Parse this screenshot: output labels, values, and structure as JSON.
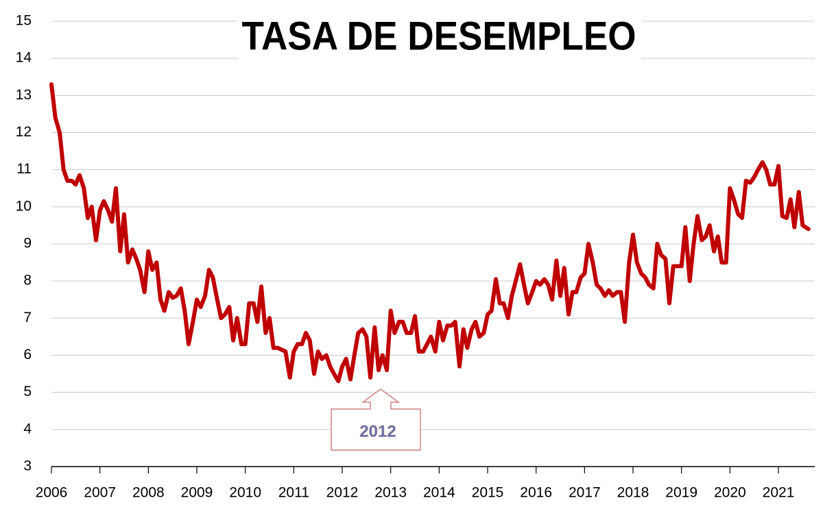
{
  "chart_data": {
    "type": "line",
    "title": "TASA DE DESEMPLEO",
    "annotation": "2012",
    "x": [
      2006.0,
      2006.08,
      2006.17,
      2006.25,
      2006.33,
      2006.42,
      2006.5,
      2006.58,
      2006.67,
      2006.75,
      2006.83,
      2006.92,
      2007.0,
      2007.08,
      2007.17,
      2007.25,
      2007.33,
      2007.42,
      2007.5,
      2007.58,
      2007.67,
      2007.75,
      2007.83,
      2007.92,
      2008.0,
      2008.08,
      2008.17,
      2008.25,
      2008.33,
      2008.42,
      2008.5,
      2008.58,
      2008.67,
      2008.75,
      2008.83,
      2008.92,
      2009.0,
      2009.08,
      2009.17,
      2009.25,
      2009.33,
      2009.42,
      2009.5,
      2009.58,
      2009.67,
      2009.75,
      2009.83,
      2009.92,
      2010.0,
      2010.08,
      2010.17,
      2010.25,
      2010.33,
      2010.42,
      2010.5,
      2010.58,
      2010.67,
      2010.75,
      2010.83,
      2010.92,
      2011.0,
      2011.08,
      2011.17,
      2011.25,
      2011.33,
      2011.42,
      2011.5,
      2011.58,
      2011.67,
      2011.75,
      2011.83,
      2011.92,
      2012.0,
      2012.08,
      2012.17,
      2012.25,
      2012.33,
      2012.42,
      2012.5,
      2012.58,
      2012.67,
      2012.75,
      2012.83,
      2012.92,
      2013.0,
      2013.08,
      2013.17,
      2013.25,
      2013.33,
      2013.42,
      2013.5,
      2013.58,
      2013.67,
      2013.75,
      2013.83,
      2013.92,
      2014.0,
      2014.08,
      2014.17,
      2014.25,
      2014.33,
      2014.42,
      2014.5,
      2014.58,
      2014.67,
      2014.75,
      2014.83,
      2014.92,
      2015.0,
      2015.08,
      2015.17,
      2015.25,
      2015.33,
      2015.42,
      2015.5,
      2015.58,
      2015.67,
      2015.75,
      2015.83,
      2015.92,
      2016.0,
      2016.08,
      2016.17,
      2016.25,
      2016.33,
      2016.42,
      2016.5,
      2016.58,
      2016.67,
      2016.75,
      2016.83,
      2016.92,
      2017.0,
      2017.08,
      2017.17,
      2017.25,
      2017.33,
      2017.42,
      2017.5,
      2017.58,
      2017.67,
      2017.75,
      2017.83,
      2017.92,
      2018.0,
      2018.08,
      2018.17,
      2018.25,
      2018.33,
      2018.42,
      2018.5,
      2018.58,
      2018.67,
      2018.75,
      2018.83,
      2018.92,
      2019.0,
      2019.08,
      2019.17,
      2019.25,
      2019.33,
      2019.42,
      2019.5,
      2019.58,
      2019.67,
      2019.75,
      2019.83,
      2019.92,
      2020.0,
      2020.08,
      2020.17,
      2020.25,
      2020.33,
      2020.42,
      2020.5,
      2020.58,
      2020.67,
      2020.75,
      2020.83,
      2020.92,
      2021.0,
      2021.08,
      2021.17,
      2021.25,
      2021.33,
      2021.42,
      2021.5,
      2021.62
    ],
    "series": [
      {
        "color": "#c00000",
        "values": [
          13.3,
          12.4,
          12.0,
          11.0,
          10.7,
          10.7,
          10.6,
          10.85,
          10.5,
          9.7,
          10.0,
          9.1,
          9.9,
          10.15,
          9.9,
          9.6,
          10.5,
          8.8,
          9.8,
          8.5,
          8.85,
          8.6,
          8.3,
          7.7,
          8.8,
          8.3,
          8.5,
          7.5,
          7.2,
          7.7,
          7.55,
          7.6,
          7.8,
          7.2,
          6.3,
          6.9,
          7.5,
          7.3,
          7.6,
          8.3,
          8.1,
          7.5,
          7.0,
          7.1,
          7.3,
          6.4,
          7.0,
          6.3,
          6.3,
          7.4,
          7.4,
          6.9,
          7.85,
          6.6,
          7.0,
          6.2,
          6.2,
          6.15,
          6.1,
          5.4,
          6.1,
          6.3,
          6.3,
          6.6,
          6.4,
          5.5,
          6.1,
          5.9,
          6.0,
          5.7,
          5.5,
          5.3,
          5.7,
          5.9,
          5.35,
          6.0,
          6.6,
          6.7,
          6.5,
          5.4,
          6.75,
          5.6,
          6.0,
          5.6,
          7.2,
          6.6,
          6.9,
          6.9,
          6.6,
          6.6,
          7.05,
          6.1,
          6.1,
          6.3,
          6.5,
          6.1,
          6.9,
          6.4,
          6.8,
          6.8,
          6.9,
          5.7,
          6.7,
          6.2,
          6.7,
          6.9,
          6.5,
          6.6,
          7.1,
          7.2,
          8.05,
          7.4,
          7.4,
          7.0,
          7.6,
          8.0,
          8.45,
          7.9,
          7.4,
          7.7,
          8.0,
          7.9,
          8.05,
          7.9,
          7.5,
          8.55,
          7.6,
          8.35,
          7.1,
          7.7,
          7.7,
          8.1,
          8.2,
          9.0,
          8.5,
          7.9,
          7.8,
          7.6,
          7.75,
          7.6,
          7.7,
          7.7,
          6.9,
          8.5,
          9.25,
          8.5,
          8.2,
          8.1,
          7.9,
          7.8,
          9.0,
          8.7,
          8.6,
          7.4,
          8.4,
          8.4,
          8.4,
          9.45,
          8.0,
          9.0,
          9.75,
          9.1,
          9.2,
          9.5,
          8.8,
          9.2,
          8.5,
          8.5,
          10.5,
          10.2,
          9.8,
          9.7,
          10.7,
          10.65,
          10.8,
          11.0,
          11.2,
          11.0,
          10.6,
          10.6,
          11.1,
          9.75,
          9.7,
          10.2,
          9.45,
          10.4,
          9.5,
          9.4
        ]
      }
    ],
    "xlim": [
      2006,
      2021.75
    ],
    "xticks": [
      2006,
      2007,
      2008,
      2009,
      2010,
      2011,
      2012,
      2013,
      2014,
      2015,
      2016,
      2017,
      2018,
      2019,
      2020,
      2021
    ],
    "ylim": [
      3,
      15
    ],
    "yticks": [
      3,
      4,
      5,
      6,
      7,
      8,
      9,
      10,
      11,
      12,
      13,
      14,
      15
    ],
    "grid": true
  }
}
